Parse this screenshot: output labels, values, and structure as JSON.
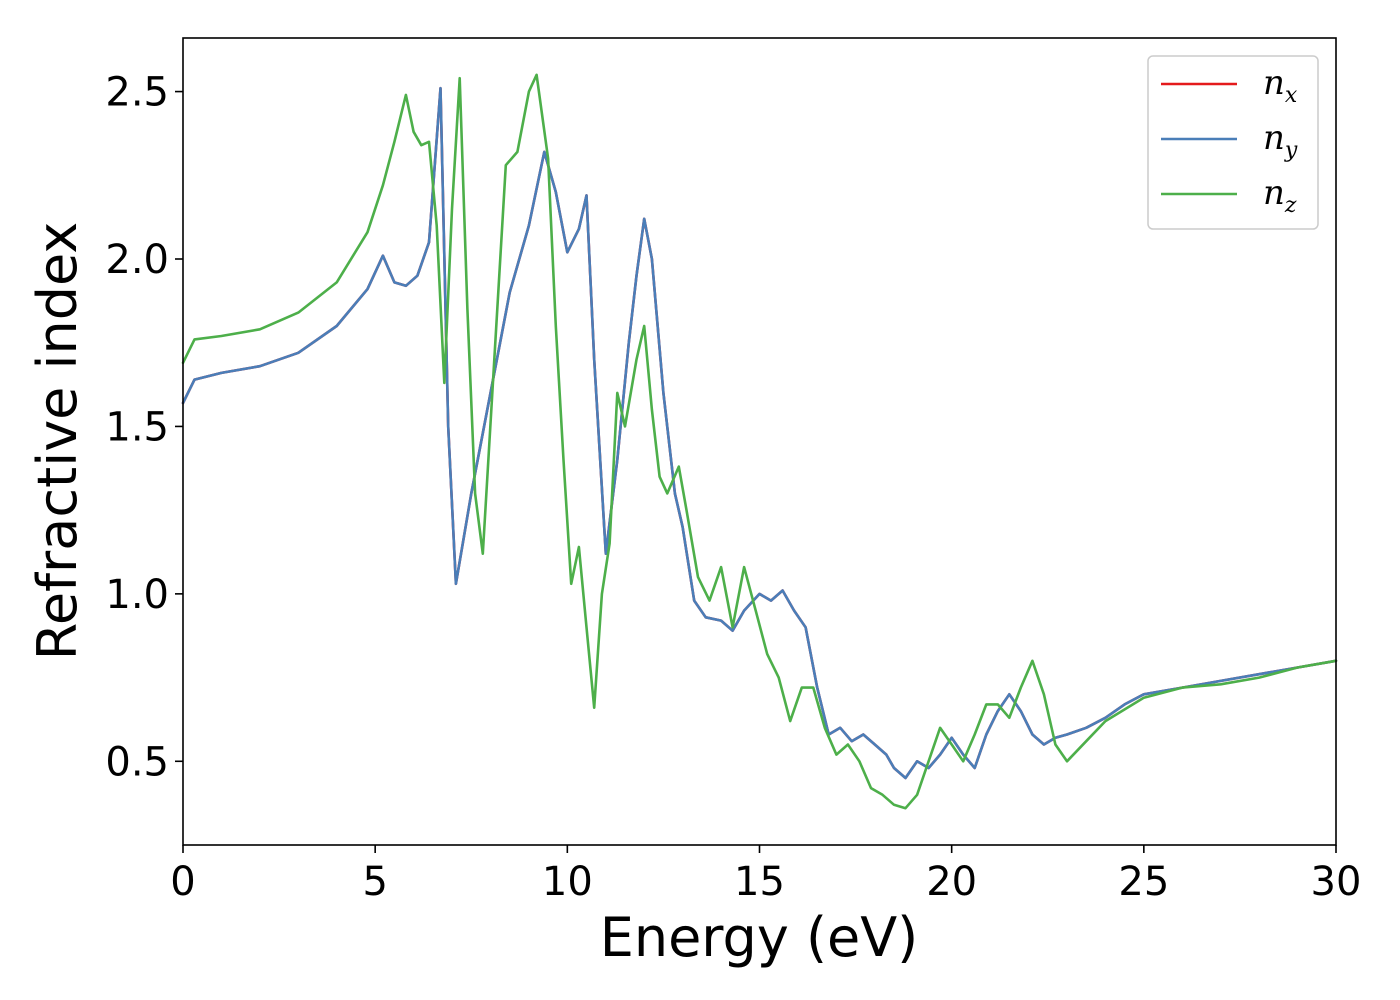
{
  "chart_data": {
    "type": "line",
    "xlabel": "Energy (eV)",
    "ylabel": "Refractive index",
    "xlim": [
      0,
      30
    ],
    "ylim": [
      0.25,
      2.66
    ],
    "xticks": [
      0,
      5,
      10,
      15,
      20,
      25,
      30
    ],
    "xtick_labels": [
      "0",
      "5",
      "10",
      "15",
      "20",
      "25",
      "30"
    ],
    "yticks": [
      0.5,
      1.0,
      1.5,
      2.0,
      2.5
    ],
    "ytick_labels": [
      "0.5",
      "1.0",
      "1.5",
      "2.0",
      "2.5"
    ],
    "grid": false,
    "legend_position": "top-right",
    "series": [
      {
        "name": "n_x",
        "legend_base": "n",
        "legend_sub": "x",
        "color": "#e41a1c",
        "x": [
          0,
          0.3,
          1,
          2,
          3,
          4,
          4.8,
          5.2,
          5.5,
          5.8,
          6.1,
          6.4,
          6.7,
          6.9,
          7.1,
          7.5,
          8,
          8.5,
          9,
          9.4,
          9.7,
          10,
          10.3,
          10.5,
          10.7,
          11,
          11.3,
          11.6,
          11.8,
          12,
          12.2,
          12.5,
          12.8,
          13,
          13.3,
          13.6,
          14,
          14.3,
          14.6,
          15,
          15.3,
          15.6,
          15.9,
          16.2,
          16.5,
          16.8,
          17.1,
          17.4,
          17.7,
          18,
          18.3,
          18.5,
          18.8,
          19.1,
          19.4,
          19.7,
          20,
          20.3,
          20.6,
          20.9,
          21.2,
          21.5,
          21.8,
          22.1,
          22.4,
          22.7,
          23,
          23.5,
          24,
          24.5,
          25,
          26,
          27,
          28,
          29,
          30
        ],
        "y": [
          1.57,
          1.64,
          1.66,
          1.68,
          1.72,
          1.8,
          1.91,
          2.01,
          1.93,
          1.92,
          1.95,
          2.05,
          2.51,
          1.5,
          1.03,
          1.3,
          1.6,
          1.9,
          2.1,
          2.32,
          2.2,
          2.02,
          2.09,
          2.19,
          1.7,
          1.12,
          1.4,
          1.75,
          1.95,
          2.12,
          2.0,
          1.6,
          1.3,
          1.2,
          0.98,
          0.93,
          0.92,
          0.89,
          0.95,
          1.0,
          0.98,
          1.01,
          0.95,
          0.9,
          0.72,
          0.58,
          0.6,
          0.56,
          0.58,
          0.55,
          0.52,
          0.48,
          0.45,
          0.5,
          0.48,
          0.52,
          0.57,
          0.52,
          0.48,
          0.58,
          0.65,
          0.7,
          0.65,
          0.58,
          0.55,
          0.57,
          0.58,
          0.6,
          0.63,
          0.67,
          0.7,
          0.72,
          0.74,
          0.76,
          0.78,
          0.8
        ]
      },
      {
        "name": "n_y",
        "legend_base": "n",
        "legend_sub": "y",
        "color": "#4a7eb8",
        "x": [
          0,
          0.3,
          1,
          2,
          3,
          4,
          4.8,
          5.2,
          5.5,
          5.8,
          6.1,
          6.4,
          6.7,
          6.9,
          7.1,
          7.5,
          8,
          8.5,
          9,
          9.4,
          9.7,
          10,
          10.3,
          10.5,
          10.7,
          11,
          11.3,
          11.6,
          11.8,
          12,
          12.2,
          12.5,
          12.8,
          13,
          13.3,
          13.6,
          14,
          14.3,
          14.6,
          15,
          15.3,
          15.6,
          15.9,
          16.2,
          16.5,
          16.8,
          17.1,
          17.4,
          17.7,
          18,
          18.3,
          18.5,
          18.8,
          19.1,
          19.4,
          19.7,
          20,
          20.3,
          20.6,
          20.9,
          21.2,
          21.5,
          21.8,
          22.1,
          22.4,
          22.7,
          23,
          23.5,
          24,
          24.5,
          25,
          26,
          27,
          28,
          29,
          30
        ],
        "y": [
          1.57,
          1.64,
          1.66,
          1.68,
          1.72,
          1.8,
          1.91,
          2.01,
          1.93,
          1.92,
          1.95,
          2.05,
          2.51,
          1.5,
          1.03,
          1.3,
          1.6,
          1.9,
          2.1,
          2.32,
          2.2,
          2.02,
          2.09,
          2.19,
          1.7,
          1.12,
          1.4,
          1.75,
          1.95,
          2.12,
          2.0,
          1.6,
          1.3,
          1.2,
          0.98,
          0.93,
          0.92,
          0.89,
          0.95,
          1.0,
          0.98,
          1.01,
          0.95,
          0.9,
          0.72,
          0.58,
          0.6,
          0.56,
          0.58,
          0.55,
          0.52,
          0.48,
          0.45,
          0.5,
          0.48,
          0.52,
          0.57,
          0.52,
          0.48,
          0.58,
          0.65,
          0.7,
          0.65,
          0.58,
          0.55,
          0.57,
          0.58,
          0.6,
          0.63,
          0.67,
          0.7,
          0.72,
          0.74,
          0.76,
          0.78,
          0.8
        ]
      },
      {
        "name": "n_z",
        "legend_base": "n",
        "legend_sub": "z",
        "color": "#4daf4a",
        "x": [
          0,
          0.3,
          1,
          2,
          3,
          4,
          4.8,
          5.2,
          5.5,
          5.8,
          6.0,
          6.2,
          6.4,
          6.6,
          6.8,
          7.0,
          7.2,
          7.4,
          7.6,
          7.8,
          8.1,
          8.4,
          8.7,
          9.0,
          9.2,
          9.5,
          9.7,
          9.9,
          10.1,
          10.3,
          10.5,
          10.7,
          10.9,
          11.1,
          11.3,
          11.5,
          11.8,
          12.0,
          12.2,
          12.4,
          12.6,
          12.9,
          13.1,
          13.4,
          13.7,
          14.0,
          14.3,
          14.6,
          14.9,
          15.2,
          15.5,
          15.8,
          16.1,
          16.4,
          16.7,
          17.0,
          17.3,
          17.6,
          17.9,
          18.2,
          18.5,
          18.8,
          19.1,
          19.4,
          19.7,
          20.0,
          20.3,
          20.6,
          20.9,
          21.2,
          21.5,
          21.8,
          22.1,
          22.4,
          22.7,
          23.0,
          23.5,
          24,
          25,
          26,
          27,
          28,
          29,
          30
        ],
        "y": [
          1.69,
          1.76,
          1.77,
          1.79,
          1.84,
          1.93,
          2.08,
          2.22,
          2.35,
          2.49,
          2.38,
          2.34,
          2.35,
          2.1,
          1.63,
          2.15,
          2.54,
          1.85,
          1.3,
          1.12,
          1.7,
          2.28,
          2.32,
          2.5,
          2.55,
          2.3,
          1.8,
          1.4,
          1.03,
          1.14,
          0.9,
          0.66,
          1.0,
          1.15,
          1.6,
          1.5,
          1.7,
          1.8,
          1.55,
          1.35,
          1.3,
          1.38,
          1.25,
          1.05,
          0.98,
          1.08,
          0.9,
          1.08,
          0.95,
          0.82,
          0.75,
          0.62,
          0.72,
          0.72,
          0.6,
          0.52,
          0.55,
          0.5,
          0.42,
          0.4,
          0.37,
          0.36,
          0.4,
          0.5,
          0.6,
          0.55,
          0.5,
          0.58,
          0.67,
          0.67,
          0.63,
          0.72,
          0.8,
          0.7,
          0.55,
          0.5,
          0.56,
          0.62,
          0.69,
          0.72,
          0.73,
          0.75,
          0.78,
          0.8
        ]
      }
    ]
  }
}
